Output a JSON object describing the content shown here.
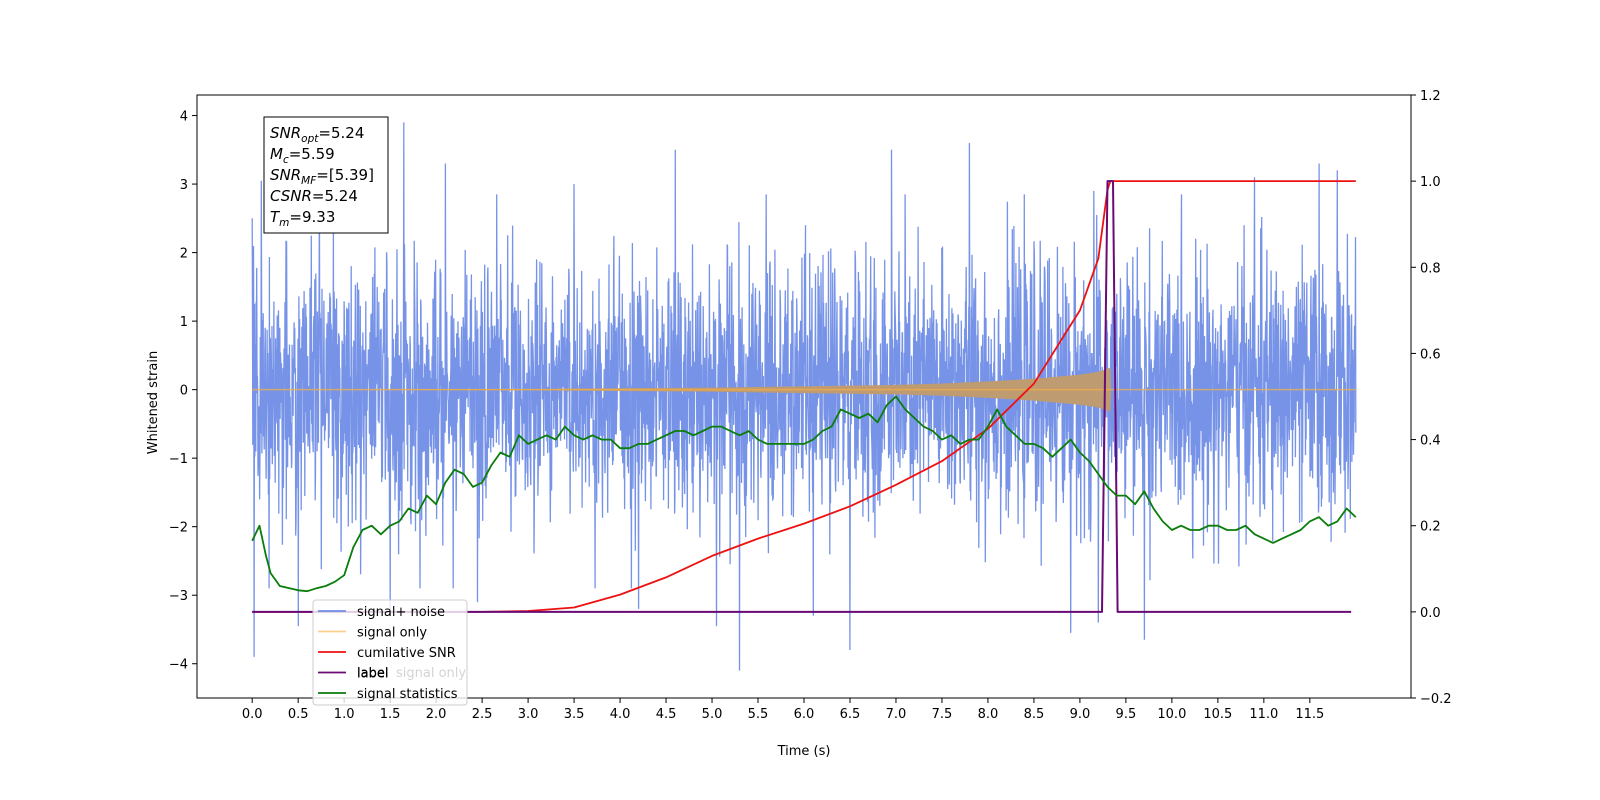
{
  "chart_data": {
    "type": "line",
    "xlabel": "Time (s)",
    "ylabel": "Whitened strain",
    "xlim": [
      -0.6,
      12.6
    ],
    "ylim_left": [
      -4.5,
      4.3
    ],
    "ylim_right": [
      -0.2,
      1.2
    ],
    "x_ticks": [
      "0.0",
      "0.5",
      "1.0",
      "1.5",
      "2.0",
      "2.5",
      "3.0",
      "3.5",
      "4.0",
      "4.5",
      "5.0",
      "5.5",
      "6.0",
      "6.5",
      "7.0",
      "7.5",
      "8.0",
      "8.5",
      "9.0",
      "9.5",
      "10.0",
      "10.5",
      "11.0",
      "11.5"
    ],
    "y_ticks_left": [
      "4",
      "3",
      "2",
      "1",
      "0",
      "−1",
      "−2",
      "−3",
      "−4"
    ],
    "y_ticks_right": [
      "1.2",
      "1.0",
      "0.8",
      "0.6",
      "0.4",
      "0.2",
      "0.0",
      "−0.2"
    ],
    "annotation": {
      "lines": [
        {
          "name": "SNR",
          "sub": "opt",
          "value": "=5.24"
        },
        {
          "name": "M",
          "sub": "c",
          "value": "=5.59"
        },
        {
          "name": "SNR",
          "sub": "MF",
          "value": "=[5.39]"
        },
        {
          "name": "CSNR",
          "sub": "",
          "value": "=5.24"
        },
        {
          "name": "T",
          "sub": "m",
          "value": "=9.33"
        }
      ]
    },
    "legend": {
      "placement": "lower-left",
      "entries": [
        "signal+ noise",
        "signal only",
        "cumilative SNR",
        "label",
        "signal statistics"
      ],
      "hidden_text": "signal only"
    },
    "colors": {
      "noise": "#6f8de6",
      "signal": "#f5b041",
      "signal_fill": "#bf9b72",
      "snr": "#ee1111",
      "label": "#6a0a75",
      "stats": "#0a7d0a"
    },
    "series": [
      {
        "name": "signal+ noise",
        "axis": "left",
        "x_range": [
          0.0,
          12.0
        ],
        "std": 1.0,
        "y_range": [
          -4.1,
          3.9
        ],
        "peaks": [
          {
            "x": 0.0,
            "y": 2.5
          },
          {
            "x": 0.02,
            "y": -3.9
          },
          {
            "x": 0.1,
            "y": 3.05
          },
          {
            "x": 0.5,
            "y": -3.45
          },
          {
            "x": 1.65,
            "y": 3.9
          },
          {
            "x": 1.5,
            "y": -3.25
          },
          {
            "x": 2.1,
            "y": 3.3
          },
          {
            "x": 2.45,
            "y": -3.1
          },
          {
            "x": 3.5,
            "y": 3.0
          },
          {
            "x": 4.2,
            "y": -3.2
          },
          {
            "x": 4.6,
            "y": 3.5
          },
          {
            "x": 5.05,
            "y": -3.45
          },
          {
            "x": 5.3,
            "y": 3.3
          },
          {
            "x": 5.3,
            "y": -4.1
          },
          {
            "x": 6.1,
            "y": -3.3
          },
          {
            "x": 6.5,
            "y": -3.8
          },
          {
            "x": 6.95,
            "y": 3.5
          },
          {
            "x": 7.8,
            "y": 3.6
          },
          {
            "x": 8.9,
            "y": -3.55
          },
          {
            "x": 9.2,
            "y": -3.4
          },
          {
            "x": 9.15,
            "y": 2.9
          },
          {
            "x": 9.7,
            "y": -3.65
          },
          {
            "x": 10.9,
            "y": 3.1
          },
          {
            "x": 11.6,
            "y": 3.3
          },
          {
            "x": 11.8,
            "y": 3.2
          }
        ]
      },
      {
        "name": "signal only",
        "axis": "left",
        "x": [
          0.0,
          3.0,
          5.0,
          6.0,
          7.0,
          7.5,
          8.0,
          8.5,
          9.0,
          9.2,
          9.33,
          9.34,
          12.0
        ],
        "envelope": [
          0.0,
          0.01,
          0.03,
          0.05,
          0.07,
          0.09,
          0.12,
          0.16,
          0.22,
          0.26,
          0.32,
          0.0,
          0.0
        ]
      },
      {
        "name": "cumilative SNR",
        "axis": "right",
        "x": [
          0.0,
          2.5,
          3.0,
          3.5,
          4.0,
          4.5,
          5.0,
          5.5,
          6.0,
          6.5,
          7.0,
          7.5,
          8.0,
          8.5,
          9.0,
          9.2,
          9.3,
          9.33,
          12.0
        ],
        "values": [
          0.0,
          0.0,
          0.002,
          0.01,
          0.04,
          0.08,
          0.13,
          0.17,
          0.205,
          0.245,
          0.295,
          0.35,
          0.425,
          0.53,
          0.7,
          0.82,
          0.98,
          1.0,
          1.0
        ]
      },
      {
        "name": "label",
        "axis": "right",
        "x": [
          0.0,
          9.24,
          9.3,
          9.36,
          9.41,
          11.95
        ],
        "values": [
          0.0,
          0.0,
          1.0,
          1.0,
          0.0,
          0.0
        ]
      },
      {
        "name": "signal statistics",
        "axis": "right",
        "x": [
          0.0,
          0.08,
          0.15,
          0.2,
          0.3,
          0.5,
          0.6,
          0.7,
          0.8,
          0.9,
          1.0,
          1.1,
          1.2,
          1.3,
          1.4,
          1.5,
          1.6,
          1.7,
          1.8,
          1.9,
          2.0,
          2.1,
          2.2,
          2.3,
          2.4,
          2.5,
          2.6,
          2.7,
          2.8,
          2.9,
          3.0,
          3.1,
          3.2,
          3.3,
          3.4,
          3.5,
          3.6,
          3.7,
          3.8,
          3.9,
          4.0,
          4.1,
          4.2,
          4.3,
          4.4,
          4.5,
          4.6,
          4.7,
          4.8,
          4.9,
          5.0,
          5.1,
          5.2,
          5.3,
          5.4,
          5.5,
          5.6,
          5.7,
          5.8,
          5.9,
          6.0,
          6.1,
          6.2,
          6.3,
          6.4,
          6.5,
          6.6,
          6.7,
          6.8,
          6.9,
          7.0,
          7.1,
          7.2,
          7.3,
          7.4,
          7.5,
          7.6,
          7.7,
          7.8,
          7.9,
          8.0,
          8.1,
          8.2,
          8.3,
          8.4,
          8.5,
          8.6,
          8.7,
          8.8,
          8.9,
          9.0,
          9.1,
          9.2,
          9.3,
          9.4,
          9.5,
          9.6,
          9.7,
          9.8,
          9.9,
          10.0,
          10.1,
          10.2,
          10.3,
          10.4,
          10.5,
          10.6,
          10.7,
          10.8,
          10.9,
          11.0,
          11.1,
          11.2,
          11.3,
          11.4,
          11.5,
          11.6,
          11.7,
          11.8,
          11.9,
          12.0
        ],
        "values": [
          0.165,
          0.2,
          0.13,
          0.09,
          0.06,
          0.05,
          0.048,
          0.055,
          0.06,
          0.07,
          0.085,
          0.15,
          0.19,
          0.2,
          0.18,
          0.2,
          0.21,
          0.24,
          0.23,
          0.27,
          0.25,
          0.3,
          0.33,
          0.32,
          0.29,
          0.3,
          0.34,
          0.37,
          0.36,
          0.41,
          0.39,
          0.4,
          0.41,
          0.4,
          0.43,
          0.41,
          0.4,
          0.41,
          0.4,
          0.4,
          0.38,
          0.38,
          0.39,
          0.39,
          0.4,
          0.41,
          0.42,
          0.42,
          0.41,
          0.42,
          0.43,
          0.43,
          0.42,
          0.41,
          0.42,
          0.4,
          0.39,
          0.39,
          0.39,
          0.39,
          0.39,
          0.4,
          0.42,
          0.43,
          0.47,
          0.46,
          0.45,
          0.46,
          0.44,
          0.48,
          0.5,
          0.47,
          0.45,
          0.43,
          0.42,
          0.4,
          0.41,
          0.39,
          0.4,
          0.4,
          0.43,
          0.47,
          0.43,
          0.41,
          0.39,
          0.39,
          0.38,
          0.36,
          0.38,
          0.4,
          0.37,
          0.35,
          0.32,
          0.29,
          0.27,
          0.27,
          0.25,
          0.28,
          0.24,
          0.21,
          0.19,
          0.2,
          0.19,
          0.19,
          0.2,
          0.2,
          0.19,
          0.19,
          0.2,
          0.18,
          0.17,
          0.16,
          0.17,
          0.18,
          0.19,
          0.21,
          0.22,
          0.2,
          0.21,
          0.24,
          0.22
        ]
      }
    ]
  }
}
